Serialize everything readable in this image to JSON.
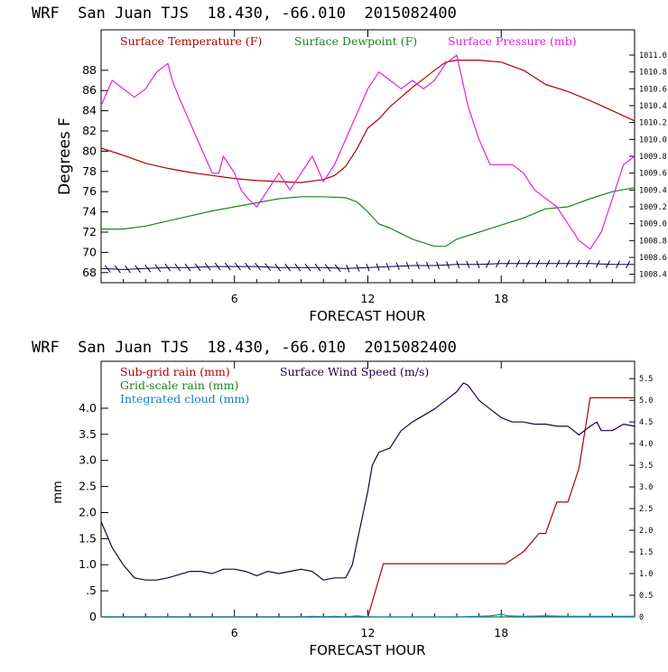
{
  "chart_data": [
    {
      "type": "line",
      "title": "WRF  San Juan TJS  18.430, -66.010  2015082400",
      "xlabel": "FORECAST HOUR",
      "ylabel": "Degrees F",
      "xlim": [
        0,
        24
      ],
      "ylim": [
        67,
        92
      ],
      "xticks": [
        6,
        12,
        18
      ],
      "yticks": [
        68,
        70,
        72,
        74,
        76,
        78,
        80,
        82,
        84,
        86,
        88
      ],
      "y2lim": [
        1008.3,
        1011.3
      ],
      "y2ticks": [
        "1008.4",
        "1008.6",
        "1008.8",
        "1009.0",
        "1009.2",
        "1009.4",
        "1009.6",
        "1009.8",
        "1010.0",
        "1010.2",
        "1010.4",
        "1010.6",
        "1010.8",
        "1011.0"
      ],
      "legend_position": "top",
      "colors": {
        "temp": "#b00000",
        "dew": "#208020",
        "pres": "#e020e0",
        "wind": "#000040"
      },
      "series": [
        {
          "name": "Surface Temperature (F)",
          "axis": "left",
          "x": [
            0,
            1,
            2,
            3,
            4,
            5,
            6,
            7,
            8,
            9,
            10,
            10.5,
            11,
            11.5,
            12,
            12.5,
            13,
            14,
            15,
            15.5,
            16,
            17,
            18,
            19,
            20,
            21,
            22,
            23,
            24
          ],
          "y": [
            80.3,
            79.6,
            78.8,
            78.3,
            77.9,
            77.6,
            77.3,
            77.1,
            77.0,
            76.9,
            77.2,
            77.6,
            78.5,
            80.2,
            82.3,
            83.2,
            84.4,
            86.3,
            88.0,
            88.8,
            89.0,
            89.0,
            88.8,
            88.0,
            86.6,
            85.9,
            85.0,
            84.0,
            83.0
          ]
        },
        {
          "name": "Surface Dewpoint (F)",
          "axis": "left",
          "x": [
            0,
            1,
            2,
            3,
            4,
            5,
            6,
            7,
            8,
            9,
            10,
            11,
            11.5,
            12,
            12.5,
            13,
            14,
            15,
            15.5,
            16,
            17,
            18,
            19,
            20,
            21,
            22,
            23,
            24
          ],
          "y": [
            72.3,
            72.3,
            72.6,
            73.1,
            73.6,
            74.1,
            74.5,
            74.9,
            75.3,
            75.5,
            75.5,
            75.4,
            75.0,
            74.0,
            72.8,
            72.4,
            71.3,
            70.6,
            70.6,
            71.3,
            72.0,
            72.7,
            73.4,
            74.3,
            74.5,
            75.3,
            76.0,
            76.4
          ]
        },
        {
          "name": "Surface Pressure (mb)",
          "axis": "right",
          "x": [
            0,
            0.5,
            1,
            1.5,
            2,
            2.5,
            3,
            3.2,
            3.5,
            4,
            4.5,
            5,
            5.3,
            5.5,
            6,
            6.3,
            6.6,
            7,
            7.5,
            8,
            8.5,
            9,
            9.5,
            10,
            10.5,
            11,
            11.5,
            12,
            12.5,
            13,
            13.5,
            14,
            14.5,
            15,
            15.5,
            16,
            16.5,
            17,
            17.5,
            18,
            18.5,
            19,
            19.5,
            20,
            20.5,
            21,
            21.5,
            22,
            22.5,
            23,
            23.5,
            24
          ],
          "y": [
            1010.4,
            1010.7,
            1010.6,
            1010.5,
            1010.6,
            1010.8,
            1010.9,
            1010.7,
            1010.5,
            1010.2,
            1009.9,
            1009.6,
            1009.6,
            1009.8,
            1009.6,
            1009.4,
            1009.3,
            1009.2,
            1009.4,
            1009.6,
            1009.4,
            1009.6,
            1009.8,
            1009.5,
            1009.7,
            1010.0,
            1010.3,
            1010.6,
            1010.8,
            1010.7,
            1010.6,
            1010.7,
            1010.6,
            1010.7,
            1010.9,
            1011.0,
            1010.4,
            1010.0,
            1009.7,
            1009.7,
            1009.7,
            1009.6,
            1009.4,
            1009.3,
            1009.2,
            1009.0,
            1008.8,
            1008.7,
            1008.9,
            1009.3,
            1009.7,
            1009.8
          ]
        },
        {
          "name": "Surface Wind (barbs)",
          "axis": "left",
          "x": [
            0,
            1,
            2,
            3,
            4,
            5,
            6,
            7,
            8,
            9,
            10,
            11,
            12,
            13,
            14,
            15,
            16,
            17,
            18,
            19,
            20,
            21,
            22,
            23,
            24
          ],
          "y": [
            68.4,
            68.3,
            68.4,
            68.5,
            68.5,
            68.6,
            68.6,
            68.6,
            68.5,
            68.5,
            68.5,
            68.4,
            68.5,
            68.6,
            68.7,
            68.7,
            68.8,
            68.8,
            68.9,
            68.9,
            68.9,
            68.9,
            68.9,
            68.8,
            68.8
          ]
        }
      ]
    },
    {
      "type": "line",
      "title": "WRF  San Juan TJS  18.430, -66.010  2015082400",
      "xlabel": "FORECAST HOUR",
      "ylabel": "mm",
      "xlim": [
        0,
        24
      ],
      "ylim": [
        0,
        4.9
      ],
      "xticks": [
        6,
        12,
        18
      ],
      "yticks": [
        "0",
        ".5",
        "1.0",
        "1.5",
        "2.0",
        "2.5",
        "3.0",
        "3.5",
        "4.0"
      ],
      "y2lim": [
        0,
        5.9
      ],
      "y2ticks": [
        "0",
        "0.5",
        "1.0",
        "1.5",
        "2.0",
        "2.5",
        "3.0",
        "3.5",
        "4.0",
        "4.5",
        "5.0",
        "5.5"
      ],
      "legend_position": "top-left",
      "colors": {
        "subgrid": "#b00000",
        "gridscale": "#208020",
        "cloud": "#1080c0",
        "wind": "#200040"
      },
      "series": [
        {
          "name": "Sub-grid rain (mm)",
          "axis": "left",
          "x": [
            0,
            12,
            12.7,
            17,
            17.5,
            18.2,
            19,
            19.7,
            20,
            20.5,
            21,
            21.5,
            22,
            24
          ],
          "y": [
            0,
            0,
            1.02,
            1.02,
            1.02,
            1.02,
            1.25,
            1.6,
            1.6,
            2.2,
            2.2,
            2.85,
            4.2,
            4.2
          ]
        },
        {
          "name": "Grid-scale rain (mm)",
          "axis": "left",
          "x": [
            0,
            24
          ],
          "y": [
            0,
            0
          ]
        },
        {
          "name": "Integrated cloud (mm)",
          "axis": "left",
          "x": [
            0,
            9,
            9.5,
            10,
            10.5,
            11,
            11.5,
            12,
            16,
            17,
            17.5,
            18,
            18.3,
            19,
            20,
            21,
            22,
            23,
            24
          ],
          "y": [
            0,
            0,
            0.01,
            0,
            0.01,
            0,
            0.02,
            0,
            0,
            0.01,
            0.02,
            0.05,
            0.02,
            0.01,
            0.02,
            0.01,
            0.01,
            0.01,
            0.01
          ]
        },
        {
          "name": "Surface Wind Speed (m/s)",
          "axis": "right",
          "x": [
            0,
            0.5,
            1,
            1.5,
            2,
            2.5,
            3,
            4,
            4.5,
            5,
            5.5,
            6,
            6.5,
            7,
            7.5,
            8,
            8.5,
            9,
            9.5,
            10,
            10.5,
            11,
            11.3,
            11.5,
            12,
            12.2,
            12.5,
            13,
            13.5,
            14,
            15,
            15.5,
            16,
            16.3,
            16.5,
            17,
            17.5,
            18,
            18.5,
            19,
            19.5,
            20,
            20.5,
            21,
            21.5,
            22,
            22.3,
            22.5,
            23,
            23.5,
            24
          ],
          "y": [
            2.2,
            1.6,
            1.2,
            0.9,
            0.85,
            0.85,
            0.9,
            1.05,
            1.05,
            1.0,
            1.1,
            1.1,
            1.05,
            0.95,
            1.05,
            1.0,
            1.05,
            1.1,
            1.05,
            0.85,
            0.9,
            0.9,
            1.2,
            1.7,
            2.9,
            3.5,
            3.8,
            3.9,
            4.3,
            4.5,
            4.8,
            5.0,
            5.2,
            5.4,
            5.35,
            5.0,
            4.8,
            4.6,
            4.5,
            4.5,
            4.45,
            4.45,
            4.4,
            4.4,
            4.2,
            4.4,
            4.5,
            4.3,
            4.3,
            4.45,
            4.4
          ]
        }
      ]
    }
  ]
}
